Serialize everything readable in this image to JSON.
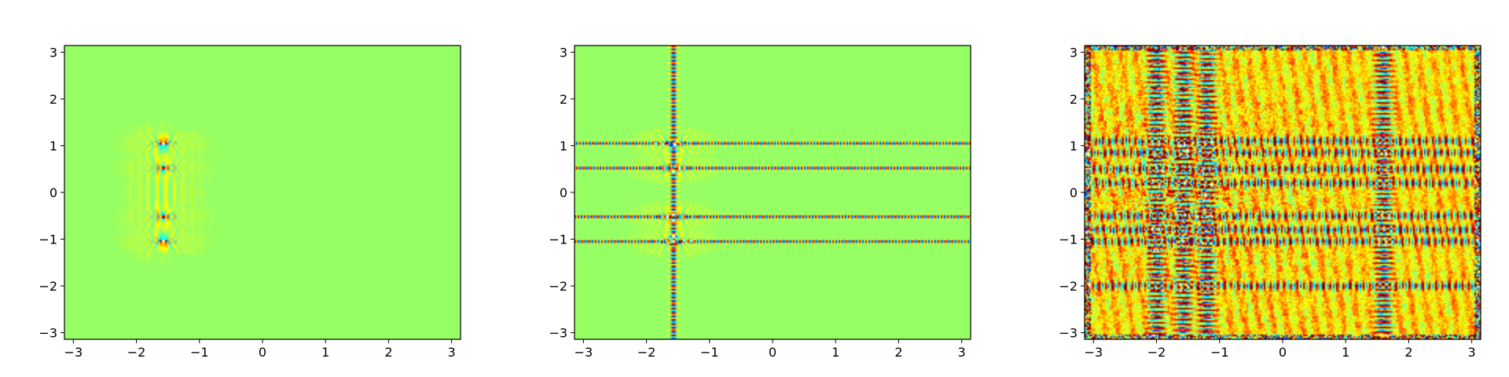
{
  "chart_data": [
    {
      "type": "heatmap",
      "title": "",
      "xlabel": "",
      "ylabel": "",
      "xlim": [
        -3.14159,
        3.14159
      ],
      "ylim": [
        -3.14159,
        3.14159
      ],
      "x_ticks": [
        "−3",
        "−2",
        "−1",
        "0",
        "1",
        "2",
        "3"
      ],
      "y_ticks": [
        "3",
        "2",
        "1",
        "0",
        "−1",
        "−2",
        "−3"
      ],
      "x_tick_values": [
        -3,
        -2,
        -1,
        0,
        1,
        2,
        3
      ],
      "y_tick_values": [
        3,
        2,
        1,
        0,
        -1,
        -2,
        -3
      ],
      "colormap": "jet",
      "background_color": "#96ff64",
      "features": {
        "hotspots": [
          {
            "x": -1.57,
            "y": 1.05
          },
          {
            "x": -1.57,
            "y": 0.52
          },
          {
            "x": -1.57,
            "y": -0.52
          },
          {
            "x": -1.57,
            "y": -1.05
          }
        ],
        "horizontal_bands": [],
        "vertical_bands": [],
        "noise_level": 0.0
      }
    },
    {
      "type": "heatmap",
      "title": "",
      "xlabel": "",
      "ylabel": "",
      "xlim": [
        -3.14159,
        3.14159
      ],
      "ylim": [
        -3.14159,
        3.14159
      ],
      "x_ticks": [
        "−3",
        "−2",
        "−1",
        "0",
        "1",
        "2",
        "3"
      ],
      "y_ticks": [
        "3",
        "2",
        "1",
        "0",
        "−1",
        "−2",
        "−3"
      ],
      "x_tick_values": [
        -3,
        -2,
        -1,
        0,
        1,
        2,
        3
      ],
      "y_tick_values": [
        3,
        2,
        1,
        0,
        -1,
        -2,
        -3
      ],
      "colormap": "jet",
      "background_color": "#96ff64",
      "features": {
        "hotspots": [
          {
            "x": -1.57,
            "y": 1.05
          },
          {
            "x": -1.57,
            "y": 0.52
          },
          {
            "x": -1.57,
            "y": -0.52
          },
          {
            "x": -1.57,
            "y": -1.05
          }
        ],
        "horizontal_bands": [
          1.05,
          0.52,
          -0.52,
          -1.05
        ],
        "vertical_bands": [
          -1.57
        ],
        "noise_level": 0.0
      }
    },
    {
      "type": "heatmap",
      "title": "",
      "xlabel": "",
      "ylabel": "",
      "xlim": [
        -3.14159,
        3.14159
      ],
      "ylim": [
        -3.14159,
        3.14159
      ],
      "x_ticks": [
        "−3",
        "−2",
        "−1",
        "0",
        "1",
        "2",
        "3"
      ],
      "y_ticks": [
        "3",
        "2",
        "1",
        "0",
        "−1",
        "−2",
        "−3"
      ],
      "x_tick_values": [
        -3,
        -2,
        -1,
        0,
        1,
        2,
        3
      ],
      "y_tick_values": [
        3,
        2,
        1,
        0,
        -1,
        -2,
        -3
      ],
      "colormap": "jet",
      "background_color": "#f2ff40",
      "features": {
        "hotspots": [
          {
            "x": -1.57,
            "y": 1.05
          },
          {
            "x": -1.57,
            "y": 0.52
          },
          {
            "x": -1.57,
            "y": -0.52
          },
          {
            "x": -1.57,
            "y": -1.05
          }
        ],
        "horizontal_bands": [
          1.1,
          0.85,
          0.5,
          0.2,
          -0.5,
          -0.8,
          -1.05,
          -2.0
        ],
        "vertical_bands": [
          -2.0,
          -1.57,
          -1.2,
          1.6
        ],
        "noise_level": 1.0
      }
    }
  ]
}
